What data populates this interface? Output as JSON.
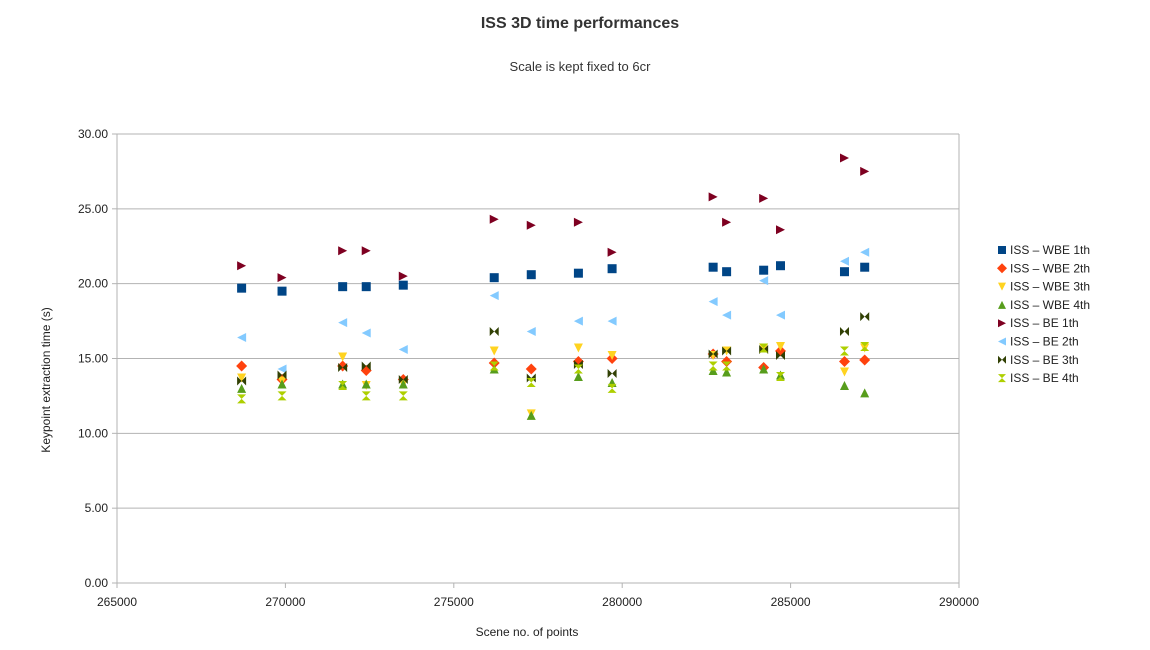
{
  "chart_data": {
    "type": "scatter",
    "title": "ISS 3D  time performances",
    "subtitle": "Scale is kept fixed to 6cr",
    "xlabel": "Scene no. of points",
    "ylabel": "Keypoint extraction time (s)",
    "xlim": [
      265000,
      290000
    ],
    "ylim": [
      0,
      30
    ],
    "x_ticks": [
      "265000",
      "270000",
      "275000",
      "280000",
      "285000",
      "290000"
    ],
    "y_ticks": [
      "0.00",
      "5.00",
      "10.00",
      "15.00",
      "20.00",
      "25.00",
      "30.00"
    ],
    "grid": "horizontal",
    "legend_position": "right",
    "x": [
      268700,
      269900,
      271700,
      272400,
      273500,
      276200,
      277300,
      278700,
      279700,
      282700,
      283100,
      284200,
      284700,
      286600,
      287200
    ],
    "series": [
      {
        "name": "ISS – WBE 1th",
        "marker": "square",
        "color": "#004586",
        "values": [
          19.7,
          19.5,
          19.8,
          19.8,
          19.9,
          20.4,
          20.6,
          20.7,
          21.0,
          21.1,
          20.8,
          20.9,
          21.2,
          20.8,
          21.1
        ]
      },
      {
        "name": "ISS – WBE 2th",
        "marker": "diamond",
        "color": "#ff420e",
        "values": [
          14.5,
          13.6,
          14.5,
          14.2,
          13.6,
          14.7,
          14.3,
          14.8,
          15.0,
          15.3,
          14.8,
          14.4,
          15.5,
          14.8,
          14.9
        ]
      },
      {
        "name": "ISS – WBE 3th",
        "marker": "triangle-down",
        "color": "#ffd320",
        "values": [
          13.7,
          13.5,
          15.1,
          13.2,
          13.3,
          15.5,
          11.3,
          15.7,
          15.2,
          15.2,
          15.5,
          15.7,
          15.8,
          14.1,
          15.7
        ]
      },
      {
        "name": "ISS – WBE 4th",
        "marker": "triangle-up",
        "color": "#579d1c",
        "values": [
          13.0,
          13.3,
          13.3,
          13.3,
          13.3,
          14.3,
          11.2,
          13.8,
          13.4,
          14.2,
          14.1,
          14.3,
          13.9,
          13.2,
          12.7
        ]
      },
      {
        "name": "ISS – BE 1th",
        "marker": "triangle-right",
        "color": "#7e0021",
        "values": [
          21.2,
          20.4,
          22.2,
          22.2,
          20.5,
          24.3,
          23.9,
          24.1,
          22.1,
          25.8,
          24.1,
          25.7,
          23.6,
          28.4,
          27.5
        ]
      },
      {
        "name": "ISS – BE 2th",
        "marker": "triangle-left",
        "color": "#83caff",
        "values": [
          16.4,
          14.3,
          17.4,
          16.7,
          15.6,
          19.2,
          16.8,
          17.5,
          17.5,
          18.8,
          17.9,
          20.2,
          17.9,
          21.5,
          22.1
        ]
      },
      {
        "name": "ISS – BE 3th",
        "marker": "bowtie",
        "color": "#314004",
        "values": [
          13.5,
          13.9,
          14.4,
          14.5,
          13.6,
          16.8,
          13.7,
          14.6,
          14.0,
          15.3,
          15.5,
          15.6,
          15.2,
          16.8,
          17.8
        ]
      },
      {
        "name": "ISS – BE 4th",
        "marker": "hourglass",
        "color": "#aecf00",
        "values": [
          12.3,
          12.5,
          13.2,
          12.5,
          12.5,
          14.5,
          13.4,
          14.3,
          13.0,
          14.5,
          14.5,
          15.7,
          13.8,
          15.5,
          15.8
        ]
      }
    ]
  }
}
